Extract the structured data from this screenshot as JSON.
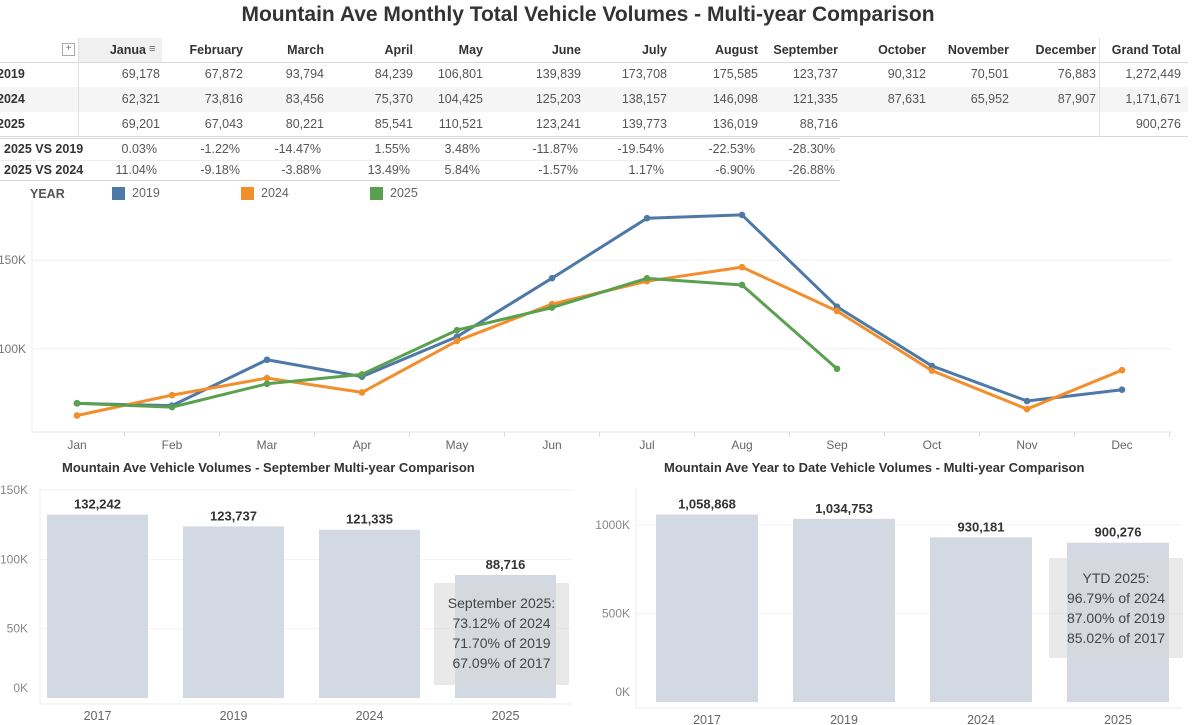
{
  "title": "Mountain Ave Monthly Total Vehicle Volumes - Multi-year Comparison",
  "table": {
    "columns": [
      "Janua",
      "February",
      "March",
      "April",
      "May",
      "June",
      "July",
      "August",
      "September",
      "October",
      "November",
      "December",
      "Grand Total"
    ],
    "rows": [
      {
        "label": "2019",
        "values": [
          "69,178",
          "67,872",
          "93,794",
          "84,239",
          "106,801",
          "139,839",
          "173,708",
          "175,585",
          "123,737",
          "90,312",
          "70,501",
          "76,883",
          "1,272,449"
        ]
      },
      {
        "label": "2024",
        "values": [
          "62,321",
          "73,816",
          "83,456",
          "75,370",
          "104,425",
          "125,203",
          "138,157",
          "146,098",
          "121,335",
          "87,631",
          "65,952",
          "87,907",
          "1,171,671"
        ]
      },
      {
        "label": "2025",
        "values": [
          "69,201",
          "67,043",
          "80,221",
          "85,541",
          "110,521",
          "123,241",
          "139,773",
          "136,019",
          "88,716",
          "",
          "",
          "",
          "900,276"
        ]
      }
    ],
    "comparisons": [
      {
        "label": "2025 VS 2019",
        "values": [
          "0.03%",
          "-1.22%",
          "-14.47%",
          "1.55%",
          "3.48%",
          "-11.87%",
          "-19.54%",
          "-22.53%",
          "-28.30%"
        ]
      },
      {
        "label": "2025 VS 2024",
        "values": [
          "11.04%",
          "-9.18%",
          "-3.88%",
          "13.49%",
          "5.84%",
          "-1.57%",
          "1.17%",
          "-6.90%",
          "-26.88%"
        ]
      }
    ]
  },
  "legend": {
    "title": "YEAR",
    "items": [
      {
        "label": "2019",
        "color": "#4e79a7"
      },
      {
        "label": "2024",
        "color": "#f28e2b"
      },
      {
        "label": "2025",
        "color": "#59a14f"
      }
    ]
  },
  "chart_data": [
    {
      "type": "line",
      "categories": [
        "Jan",
        "Feb",
        "Mar",
        "Apr",
        "May",
        "Jun",
        "Jul",
        "Aug",
        "Sep",
        "Oct",
        "Nov",
        "Dec"
      ],
      "series": [
        {
          "name": "2019",
          "color": "#4e79a7",
          "values": [
            69178,
            67872,
            93794,
            84239,
            106801,
            139839,
            173708,
            175585,
            123737,
            90312,
            70501,
            76883
          ]
        },
        {
          "name": "2024",
          "color": "#f28e2b",
          "values": [
            62321,
            73816,
            83456,
            75370,
            104425,
            125203,
            138157,
            146098,
            121335,
            87631,
            65952,
            87907
          ]
        },
        {
          "name": "2025",
          "color": "#59a14f",
          "values": [
            69201,
            67043,
            80221,
            85541,
            110521,
            123241,
            139773,
            136019,
            88716,
            null,
            null,
            null
          ]
        }
      ],
      "yticks": [
        {
          "value": 100000,
          "label": "100K"
        },
        {
          "value": 150000,
          "label": "150K"
        }
      ],
      "ylim": [
        53000,
        184000
      ],
      "grid": true
    },
    {
      "type": "bar",
      "title": "Mountain Ave Vehicle Volumes - September Multi-year Comparison",
      "categories": [
        "2017",
        "2019",
        "2024",
        "2025"
      ],
      "values": [
        132242,
        123737,
        121335,
        88716
      ],
      "labels": [
        "132,242",
        "123,737",
        "121,335",
        "88,716"
      ],
      "yticks": [
        {
          "value": 0,
          "label": "0K"
        },
        {
          "value": 50000,
          "label": "50K"
        },
        {
          "value": 100000,
          "label": "100K"
        },
        {
          "value": 150000,
          "label": "150K"
        }
      ],
      "ylim": [
        0,
        150000
      ],
      "color": "#d3d9e2",
      "annotation": [
        "September 2025:",
        "73.12% of 2024",
        "71.70% of 2019",
        "67.09% of 2017"
      ]
    },
    {
      "type": "bar",
      "title": "Mountain Ave Year to Date Vehicle Volumes - Multi-year Comparison",
      "categories": [
        "2017",
        "2019",
        "2024",
        "2025"
      ],
      "values": [
        1058868,
        1034753,
        930181,
        900276
      ],
      "labels": [
        "1,058,868",
        "1,034,753",
        "930,181",
        "900,276"
      ],
      "yticks": [
        {
          "value": 0,
          "label": "0K"
        },
        {
          "value": 500000,
          "label": "500K"
        },
        {
          "value": 1000000,
          "label": "1000K"
        }
      ],
      "ylim": [
        0,
        1000000
      ],
      "color": "#d3d9e2",
      "annotation": [
        "YTD 2025:",
        "96.79% of 2024",
        "87.00% of 2019",
        "85.02% of 2017"
      ]
    }
  ]
}
